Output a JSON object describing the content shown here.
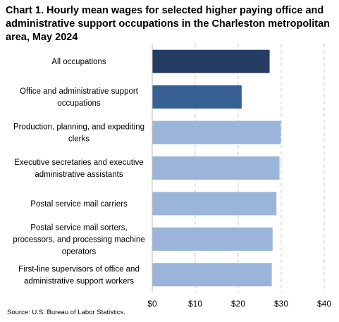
{
  "title": "Chart 1. Hourly mean wages for selected higher paying office and administrative support occupations in the Charleston metropolitan area, May 2024",
  "source": "Source: U.S. Bureau of Labor Statistics.",
  "chart_data": {
    "type": "bar",
    "orientation": "horizontal",
    "title": "Chart 1. Hourly mean wages for selected higher paying office and administrative support occupations in the Charleston metropolitan area, May 2024",
    "xlabel": "",
    "ylabel": "",
    "xlim": [
      0,
      40
    ],
    "xticks": [
      0,
      10,
      20,
      30,
      40
    ],
    "xtick_labels": [
      "$0",
      "$10",
      "$20",
      "$30",
      "$40"
    ],
    "grid": "vertical dashed",
    "legend": "none",
    "categories": [
      [
        "All occupations"
      ],
      [
        "Office and administrative support",
        "occupations"
      ],
      [
        "Production, planning, and expediting",
        "clerks"
      ],
      [
        "Executive secretaries and executive",
        "administrative assistants"
      ],
      [
        "Postal service mail carriers"
      ],
      [
        "Postal service mail sorters,",
        "processors, and processing machine",
        "operators"
      ],
      [
        "First-line supervisors of office and",
        "administrative support workers"
      ]
    ],
    "values": [
      27.3,
      20.8,
      29.9,
      29.6,
      28.9,
      28.0,
      27.8
    ],
    "colors": [
      "#253d63",
      "#365f94",
      "#9bb5da",
      "#9bb5da",
      "#9bb5da",
      "#9bb5da",
      "#9bb5da"
    ]
  }
}
